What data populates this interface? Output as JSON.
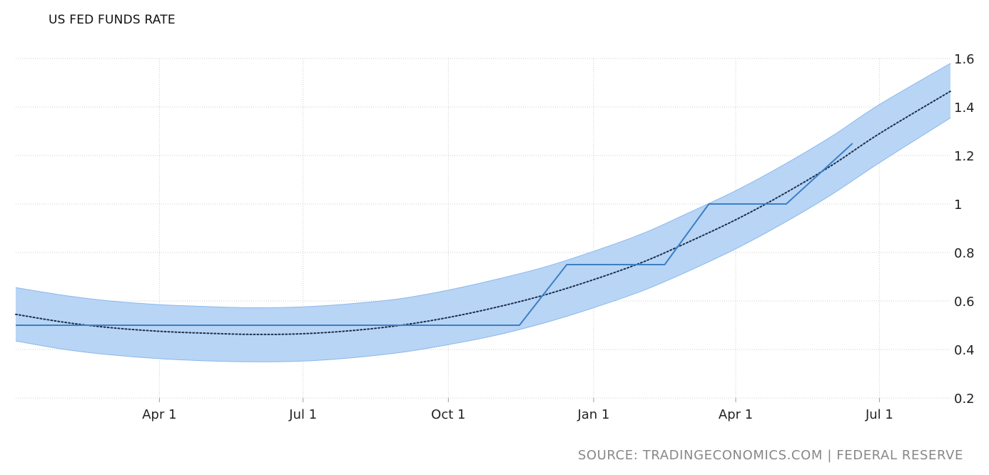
{
  "header": {
    "title": "US FED FUNDS RATE",
    "source": "SOURCE: TRADINGECONOMICS.COM | FEDERAL RESERVE"
  },
  "colors": {
    "series_line": "#3d7fc4",
    "band_fill": "#b8d5f6",
    "band_stroke": "#8bb8ea",
    "trend": "#1c2f4a",
    "grid": "#cccccc"
  },
  "chart_data": {
    "type": "line",
    "title": "US FED FUNDS RATE",
    "xlabel": "",
    "ylabel": "",
    "ylim": [
      0.2,
      1.6
    ],
    "xlim": [
      "2016-01-01",
      "2017-08-15"
    ],
    "grid": true,
    "y_axis_position": "right",
    "yticks": [
      "0.2",
      "0.4",
      "0.6",
      "0.8",
      "1",
      "1.2",
      "1.4",
      "1.6"
    ],
    "xticks": [
      {
        "date": "2016-04-01",
        "label": "Apr 1"
      },
      {
        "date": "2016-07-01",
        "label": "Jul 1"
      },
      {
        "date": "2016-10-01",
        "label": "Oct 1"
      },
      {
        "date": "2017-01-01",
        "label": "Jan 1"
      },
      {
        "date": "2017-04-01",
        "label": "Apr 1"
      },
      {
        "date": "2017-07-01",
        "label": "Jul 1"
      }
    ],
    "series": [
      {
        "type": "step-line",
        "points": [
          {
            "x": "2016-01-01",
            "y": 0.5
          },
          {
            "x": "2016-11-15",
            "y": 0.5
          },
          {
            "x": "2016-12-15",
            "y": 0.75
          },
          {
            "x": "2017-02-15",
            "y": 0.75
          },
          {
            "x": "2017-03-15",
            "y": 1.0
          },
          {
            "x": "2017-05-03",
            "y": 1.0
          },
          {
            "x": "2017-06-14",
            "y": 1.25
          }
        ]
      },
      {
        "type": "trend",
        "style": "dotted",
        "points": [
          {
            "x": "2016-01-01",
            "y": 0.545
          },
          {
            "x": "2016-02-01",
            "y": 0.512
          },
          {
            "x": "2016-03-01",
            "y": 0.49
          },
          {
            "x": "2016-04-01",
            "y": 0.475
          },
          {
            "x": "2016-05-01",
            "y": 0.467
          },
          {
            "x": "2016-06-01",
            "y": 0.462
          },
          {
            "x": "2016-07-01",
            "y": 0.465
          },
          {
            "x": "2016-08-01",
            "y": 0.478
          },
          {
            "x": "2016-09-01",
            "y": 0.5
          },
          {
            "x": "2016-10-01",
            "y": 0.532
          },
          {
            "x": "2016-11-01",
            "y": 0.575
          },
          {
            "x": "2016-12-01",
            "y": 0.625
          },
          {
            "x": "2017-01-01",
            "y": 0.688
          },
          {
            "x": "2017-02-01",
            "y": 0.76
          },
          {
            "x": "2017-03-01",
            "y": 0.84
          },
          {
            "x": "2017-04-01",
            "y": 0.935
          },
          {
            "x": "2017-05-01",
            "y": 1.04
          },
          {
            "x": "2017-06-01",
            "y": 1.16
          },
          {
            "x": "2017-07-01",
            "y": 1.29
          },
          {
            "x": "2017-08-15",
            "y": 1.465
          }
        ]
      },
      {
        "type": "band",
        "upper": [
          {
            "x": "2016-01-01",
            "y": 0.655
          },
          {
            "x": "2016-02-01",
            "y": 0.623
          },
          {
            "x": "2016-03-01",
            "y": 0.6
          },
          {
            "x": "2016-04-01",
            "y": 0.585
          },
          {
            "x": "2016-05-01",
            "y": 0.577
          },
          {
            "x": "2016-06-01",
            "y": 0.572
          },
          {
            "x": "2016-07-01",
            "y": 0.576
          },
          {
            "x": "2016-08-01",
            "y": 0.589
          },
          {
            "x": "2016-09-01",
            "y": 0.61
          },
          {
            "x": "2016-10-01",
            "y": 0.645
          },
          {
            "x": "2016-11-01",
            "y": 0.69
          },
          {
            "x": "2016-12-01",
            "y": 0.74
          },
          {
            "x": "2017-01-01",
            "y": 0.805
          },
          {
            "x": "2017-02-01",
            "y": 0.878
          },
          {
            "x": "2017-03-01",
            "y": 0.96
          },
          {
            "x": "2017-04-01",
            "y": 1.055
          },
          {
            "x": "2017-05-01",
            "y": 1.16
          },
          {
            "x": "2017-06-01",
            "y": 1.28
          },
          {
            "x": "2017-07-01",
            "y": 1.41
          },
          {
            "x": "2017-08-15",
            "y": 1.58
          }
        ],
        "lower": [
          {
            "x": "2016-01-01",
            "y": 0.435
          },
          {
            "x": "2016-02-01",
            "y": 0.4
          },
          {
            "x": "2016-03-01",
            "y": 0.378
          },
          {
            "x": "2016-04-01",
            "y": 0.362
          },
          {
            "x": "2016-05-01",
            "y": 0.353
          },
          {
            "x": "2016-06-01",
            "y": 0.349
          },
          {
            "x": "2016-07-01",
            "y": 0.352
          },
          {
            "x": "2016-08-01",
            "y": 0.366
          },
          {
            "x": "2016-09-01",
            "y": 0.388
          },
          {
            "x": "2016-10-01",
            "y": 0.42
          },
          {
            "x": "2016-11-01",
            "y": 0.46
          },
          {
            "x": "2016-12-01",
            "y": 0.51
          },
          {
            "x": "2017-01-01",
            "y": 0.572
          },
          {
            "x": "2017-02-01",
            "y": 0.642
          },
          {
            "x": "2017-03-01",
            "y": 0.72
          },
          {
            "x": "2017-04-01",
            "y": 0.815
          },
          {
            "x": "2017-05-01",
            "y": 0.92
          },
          {
            "x": "2017-06-01",
            "y": 1.04
          },
          {
            "x": "2017-07-01",
            "y": 1.17
          },
          {
            "x": "2017-08-15",
            "y": 1.355
          }
        ]
      }
    ]
  }
}
